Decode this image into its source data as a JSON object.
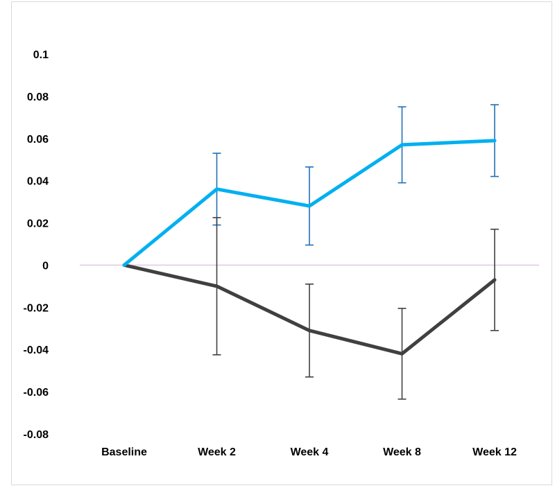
{
  "chart_data": {
    "type": "line",
    "title": "",
    "xlabel": "",
    "ylabel": "",
    "categories": [
      "Baseline",
      "Week 2",
      "Week 4",
      "Week 8",
      "Week 12"
    ],
    "ylim": [
      -0.08,
      0.1
    ],
    "yticks": [
      0.1,
      0.08,
      0.06,
      0.04,
      0.02,
      0,
      -0.02,
      -0.04,
      -0.06,
      -0.08
    ],
    "ytick_labels": [
      "0.1",
      "0.08",
      "0.06",
      "0.04",
      "0.02",
      "0",
      "-0.02",
      "-0.04",
      "-0.06",
      "-0.08"
    ],
    "grid": false,
    "legend": "none",
    "zero_line_color": "#e3d3ea",
    "series": [
      {
        "color": "#00b0f0",
        "error_bar_color": "#1f6fb5",
        "values": [
          0,
          0.036,
          0.028,
          0.057,
          0.059
        ],
        "error_low": [
          0,
          0.019,
          0.0095,
          0.039,
          0.042
        ],
        "error_high": [
          0,
          0.053,
          0.0465,
          0.075,
          0.076
        ]
      },
      {
        "color": "#404040",
        "error_bar_color": "#404040",
        "values": [
          0,
          -0.01,
          -0.031,
          -0.042,
          -0.007
        ],
        "error_low": [
          0,
          -0.0425,
          -0.053,
          -0.0635,
          -0.031
        ],
        "error_high": [
          0,
          0.0225,
          -0.009,
          -0.0205,
          0.017
        ]
      }
    ]
  }
}
